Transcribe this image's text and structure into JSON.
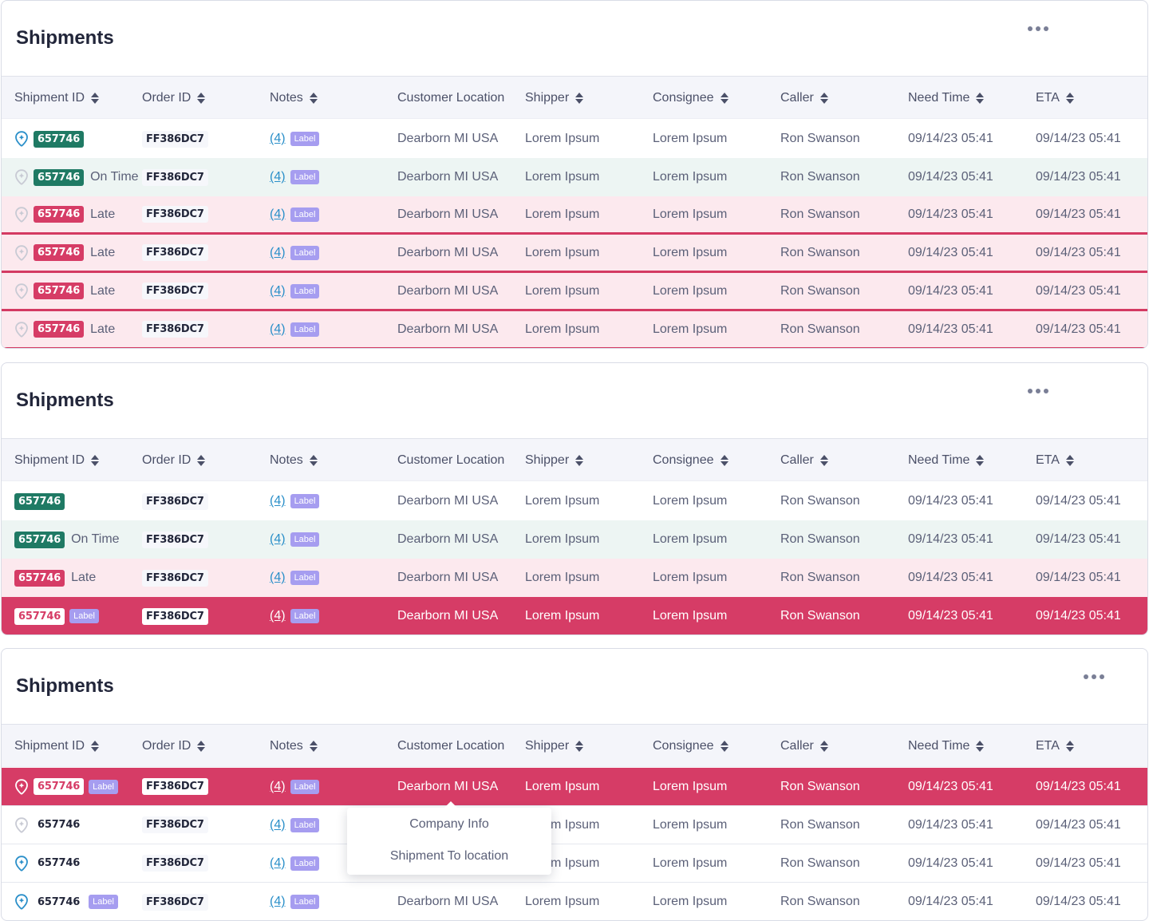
{
  "title": "Shipments",
  "columns": [
    "Shipment ID",
    "Order ID",
    "Notes",
    "Customer Location",
    "Shipper",
    "Consignee",
    "Caller",
    "Need Time",
    "ETA"
  ],
  "values": {
    "shipment_id": "657746",
    "order_id": "FF386DC7",
    "notes": "(4)",
    "label": "Label",
    "location": "Dearborn MI USA",
    "shipper": "Lorem Ipsum",
    "consignee": "Lorem Ipsum",
    "caller": "Ron Swanson",
    "need_time": "09/14/23 05:41",
    "eta": "09/14/23 05:41"
  },
  "status": {
    "on_time": "On Time",
    "late": "Late"
  },
  "colors": {
    "green": "#1f7a64",
    "red": "#d63c66",
    "pink_bg": "#fce9ee",
    "green_bg": "#edf5f3",
    "label": "#a69df0",
    "link": "#2a8fc9"
  },
  "tables": [
    {
      "rows": [
        {
          "style": "",
          "pin": "active",
          "badge": "green",
          "status": "",
          "label": false
        },
        {
          "style": "g",
          "pin": "inactive",
          "badge": "green",
          "status": "on_time",
          "label": false
        },
        {
          "style": "p",
          "pin": "inactive",
          "badge": "red",
          "status": "late",
          "label": false
        },
        {
          "style": "p",
          "pin": "inactive",
          "badge": "red",
          "status": "late",
          "label": false
        },
        {
          "style": "p",
          "pin": "inactive",
          "badge": "red",
          "status": "late",
          "label": false
        },
        {
          "style": "p",
          "pin": "inactive",
          "badge": "red",
          "status": "late",
          "label": false
        }
      ]
    },
    {
      "rows": [
        {
          "style": "",
          "pin": "none",
          "badge": "green",
          "status": "",
          "label": false
        },
        {
          "style": "g",
          "pin": "none",
          "badge": "green",
          "status": "on_time",
          "label": false
        },
        {
          "style": "p",
          "pin": "none",
          "badge": "red",
          "status": "late",
          "label": false
        },
        {
          "style": "r",
          "pin": "none",
          "badge": "white",
          "status": "",
          "label": true
        }
      ]
    },
    {
      "rows": [
        {
          "style": "r",
          "pin": "white",
          "badge": "white",
          "status": "",
          "label": true
        },
        {
          "style": "",
          "pin": "inactive",
          "badge": "plain",
          "status": "",
          "label": false
        },
        {
          "style": "",
          "pin": "active",
          "badge": "plain",
          "status": "",
          "label": false
        },
        {
          "style": "",
          "pin": "active",
          "badge": "plain",
          "status": "",
          "label": true
        }
      ]
    }
  ],
  "context_menu": {
    "items": [
      "Company Info",
      "Shipment To location"
    ]
  }
}
